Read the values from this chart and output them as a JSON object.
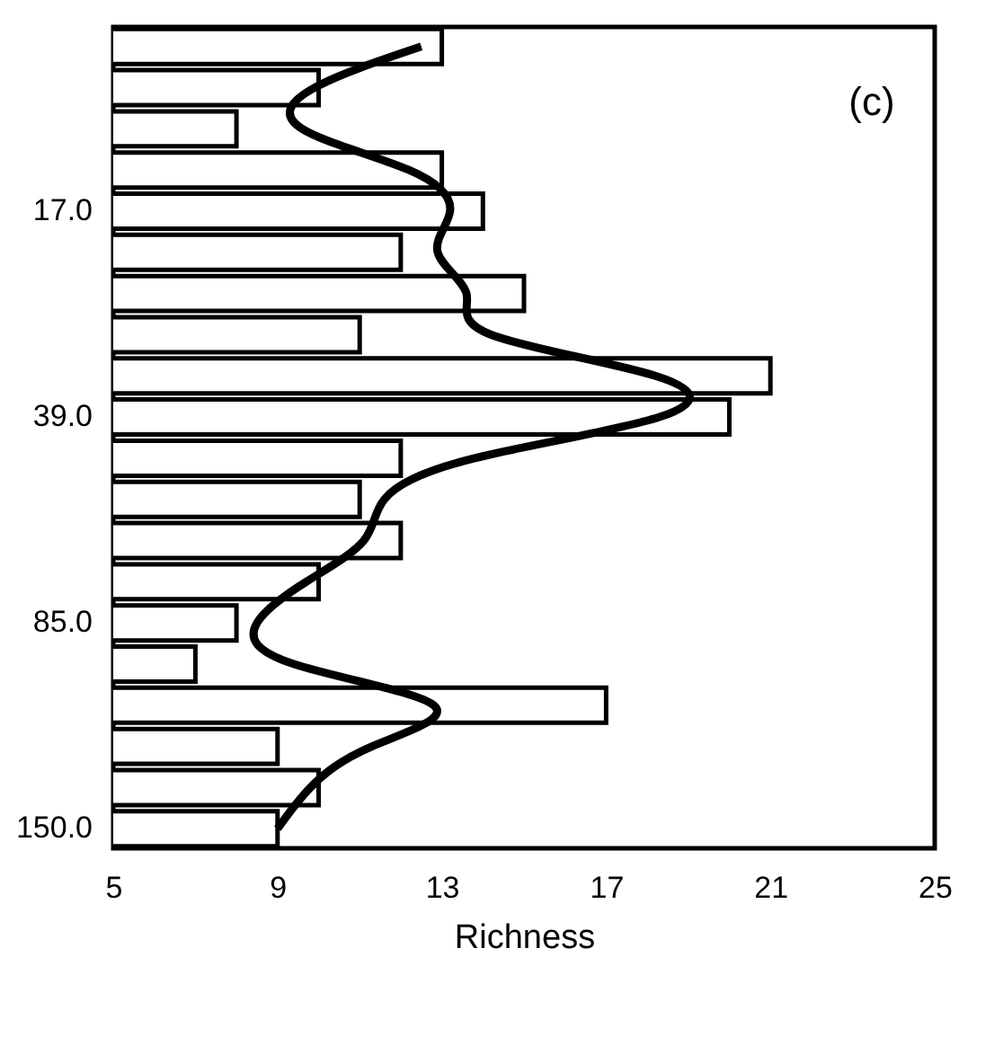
{
  "chart_data": {
    "type": "bar",
    "orientation": "horizontal",
    "xlabel": "Richness",
    "annotations": [
      "(c)"
    ],
    "categories": [
      null,
      null,
      null,
      null,
      "17.0",
      null,
      null,
      null,
      null,
      "39.0",
      null,
      null,
      null,
      null,
      "85.0",
      null,
      null,
      null,
      null,
      "150.0"
    ],
    "xlim": [
      5,
      25
    ],
    "xticks": [
      5,
      9,
      13,
      17,
      21,
      25
    ],
    "series": [
      {
        "color": "#ffffff",
        "values": [
          13,
          10,
          8,
          13,
          14,
          12,
          15,
          11,
          21,
          20,
          12,
          11,
          12,
          10,
          8,
          7,
          17,
          9,
          10,
          9
        ]
      },
      {
        "type": "line",
        "color": "#000000",
        "values": [
          12.5,
          9.9,
          9.6,
          12.2,
          13.2,
          12.9,
          13.6,
          14.2,
          18.2,
          18.3,
          13.8,
          11.6,
          11.1,
          9.7,
          8.5,
          9.4,
          12.8,
          11.3,
          9.8,
          9.0
        ]
      }
    ]
  }
}
